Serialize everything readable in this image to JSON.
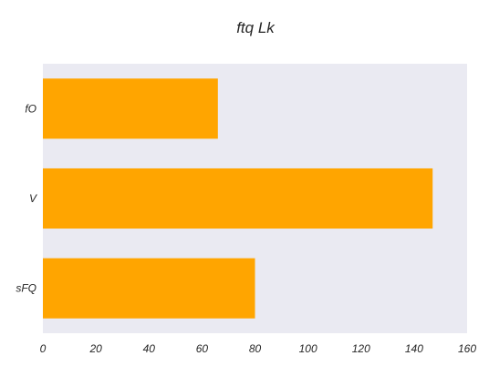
{
  "chart_data": {
    "type": "bar",
    "orientation": "horizontal",
    "title": "ftq   Lk",
    "xlabel": "",
    "ylabel": "",
    "categories": [
      "fO",
      "V",
      "sFQ"
    ],
    "values": [
      66,
      147,
      80
    ],
    "xlim": [
      0,
      160
    ],
    "xticks": [
      0,
      20,
      40,
      60,
      80,
      100,
      120,
      140,
      160
    ],
    "grid": false,
    "colors": {
      "bar": "#FFA500",
      "plot_background": "#EAEAF2",
      "text": "#262626"
    }
  }
}
